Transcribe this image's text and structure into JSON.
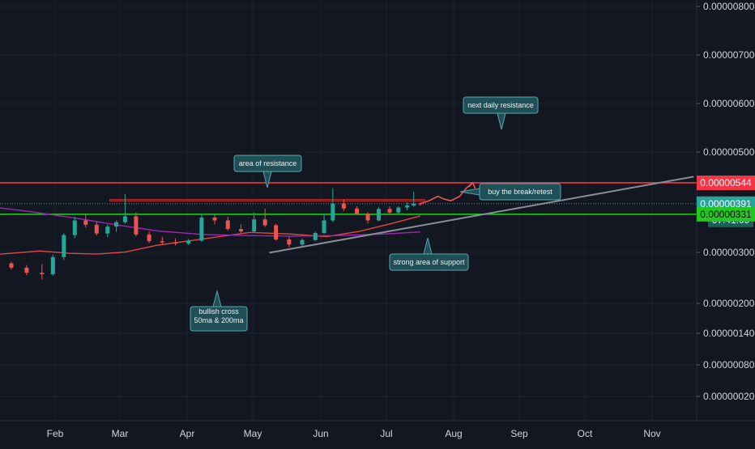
{
  "colors": {
    "background": "#131722",
    "grid": "#1e2230",
    "axis_text": "#d1d4dc",
    "up": "#26a69a",
    "down": "#ef5350",
    "ma50": "#e0483e",
    "ma200": "#9c27b0",
    "resistance_line": "#f23645",
    "support_line": "#22c71f",
    "trendline": "#8a8d96",
    "zone_fill": "#1e3b2c",
    "zone_border": "#b52b2b",
    "callout_bg": "#1f4f57",
    "callout_border": "#57a7ad",
    "projection": "#ef5350"
  },
  "chart_data": {
    "type": "candlestick",
    "title": "",
    "xlabel": "",
    "ylabel": "",
    "scale": "log",
    "ylim": [
      1e-07,
      8.5e-07
    ],
    "x_axis_labels": [
      "Feb",
      "Mar",
      "Apr",
      "May",
      "Jun",
      "Jul",
      "Aug",
      "Sep",
      "Oct",
      "Nov"
    ],
    "y_axis_labels": [
      "0.00000800",
      "0.00000700",
      "0.00000600",
      "0.00000500",
      "0.00000300",
      "0.00000200",
      "0.00000140",
      "0.00000080",
      "0.00000020"
    ],
    "price_tags": [
      {
        "label": "0.00000544",
        "kind": "resistance"
      },
      {
        "label": "0.00000391",
        "kind": "last_price"
      },
      {
        "label": "07:41:09",
        "kind": "countdown"
      },
      {
        "label": "0.00000331",
        "kind": "support"
      }
    ],
    "horizontal_levels": [
      {
        "price": 5.44e-06,
        "kind": "resistance"
      },
      {
        "price": 3.31e-06,
        "kind": "support"
      },
      {
        "price": 3.91e-06,
        "kind": "last_price"
      }
    ],
    "resistance_zone": {
      "low": 4.08e-06,
      "high": 4.18e-06,
      "from": "2021-02-26",
      "to": "2021-07-20"
    },
    "candles": [
      [
        "2021-01-05",
        1.65e-06,
        1.7e-06,
        1.48e-06,
        1.52e-06
      ],
      [
        "2021-01-12",
        1.52e-06,
        1.56e-06,
        1.38e-06,
        1.42e-06
      ],
      [
        "2021-01-19",
        1.42e-06,
        1.48e-06,
        1.26e-06,
        1.31e-06
      ],
      [
        "2021-01-26",
        1.31e-06,
        1.5e-06,
        1.18e-06,
        1.28e-06
      ],
      [
        "2021-01-31",
        1.28e-06,
        1.75e-06,
        1.25e-06,
        1.68e-06
      ],
      [
        "2021-02-05",
        1.68e-06,
        2.45e-06,
        1.6e-06,
        2.38e-06
      ],
      [
        "2021-02-10",
        2.38e-06,
        3.18e-06,
        2.26e-06,
        3e-06
      ],
      [
        "2021-02-15",
        3e-06,
        3.3e-06,
        2.68e-06,
        2.8e-06
      ],
      [
        "2021-02-20",
        2.8e-06,
        2.95e-06,
        2.36e-06,
        2.44e-06
      ],
      [
        "2021-02-25",
        2.44e-06,
        2.82e-06,
        2.3e-06,
        2.72e-06
      ],
      [
        "2021-03-01",
        2.72e-06,
        3e-06,
        2.5e-06,
        2.92e-06
      ],
      [
        "2021-03-05",
        2.92e-06,
        4.55e-06,
        2.85e-06,
        3.2e-06
      ],
      [
        "2021-03-10",
        3.2e-06,
        3.4e-06,
        2.32e-06,
        2.4e-06
      ],
      [
        "2021-03-16",
        2.4e-06,
        2.52e-06,
        2.1e-06,
        2.16e-06
      ],
      [
        "2021-03-22",
        2.16e-06,
        2.32e-06,
        2.04e-06,
        2.12e-06
      ],
      [
        "2021-03-28",
        2.12e-06,
        2.26e-06,
        2.02e-06,
        2.08e-06
      ],
      [
        "2021-04-03",
        2.08e-06,
        2.24e-06,
        2.03e-06,
        2.18e-06
      ],
      [
        "2021-04-09",
        2.18e-06,
        3.35e-06,
        2.14e-06,
        3.14e-06
      ],
      [
        "2021-04-15",
        3.14e-06,
        3.3e-06,
        2.82e-06,
        3e-06
      ],
      [
        "2021-04-21",
        3e-06,
        3.18e-06,
        2.55e-06,
        2.62e-06
      ],
      [
        "2021-04-27",
        2.62e-06,
        2.82e-06,
        2.46e-06,
        2.52e-06
      ],
      [
        "2021-05-03",
        2.52e-06,
        3.4e-06,
        2.47e-06,
        3.05e-06
      ],
      [
        "2021-05-08",
        3.05e-06,
        3.62e-06,
        2.7e-06,
        2.78e-06
      ],
      [
        "2021-05-13",
        2.78e-06,
        2.85e-06,
        2.18e-06,
        2.22e-06
      ],
      [
        "2021-05-19",
        2.22e-06,
        2.32e-06,
        1.96e-06,
        2.05e-06
      ],
      [
        "2021-05-25",
        2.05e-06,
        2.26e-06,
        1.98e-06,
        2.2e-06
      ],
      [
        "2021-05-31",
        2.2e-06,
        2.52e-06,
        2.15e-06,
        2.46e-06
      ],
      [
        "2021-06-04",
        2.46e-06,
        3.35e-06,
        2.42e-06,
        3e-06
      ],
      [
        "2021-06-08",
        3e-06,
        5e-06,
        2.92e-06,
        3.92e-06
      ],
      [
        "2021-06-13",
        3.92e-06,
        4.18e-06,
        3.48e-06,
        3.62e-06
      ],
      [
        "2021-06-19",
        3.62e-06,
        3.75e-06,
        3.26e-06,
        3.34e-06
      ],
      [
        "2021-06-24",
        3.34e-06,
        3.42e-06,
        2.86e-06,
        3e-06
      ],
      [
        "2021-06-29",
        3e-06,
        3.72e-06,
        2.96e-06,
        3.6e-06
      ],
      [
        "2021-07-04",
        3.6e-06,
        3.74e-06,
        3.3e-06,
        3.4e-06
      ],
      [
        "2021-07-08",
        3.4e-06,
        3.75e-06,
        3.28e-06,
        3.68e-06
      ],
      [
        "2021-07-12",
        3.68e-06,
        4e-06,
        3.52e-06,
        3.8e-06
      ],
      [
        "2021-07-15",
        3.8e-06,
        4.72e-06,
        3.72e-06,
        3.92e-06
      ],
      [
        "2021-07-18",
        3.92e-06,
        3.98e-06,
        3.78e-06,
        3.91e-06
      ]
    ],
    "series": [
      {
        "name": "50ma",
        "points": [
          [
            "2021-01-05",
            1.75e-06
          ],
          [
            "2021-01-25",
            1.85e-06
          ],
          [
            "2021-02-08",
            1.78e-06
          ],
          [
            "2021-02-20",
            1.76e-06
          ],
          [
            "2021-03-05",
            1.82e-06
          ],
          [
            "2021-03-20",
            2.03e-06
          ],
          [
            "2021-04-10",
            2.24e-06
          ],
          [
            "2021-05-01",
            2.48e-06
          ],
          [
            "2021-05-20",
            2.42e-06
          ],
          [
            "2021-06-05",
            2.32e-06
          ],
          [
            "2021-06-20",
            2.52e-06
          ],
          [
            "2021-07-05",
            2.86e-06
          ],
          [
            "2021-07-18",
            3.22e-06
          ]
        ]
      },
      {
        "name": "200ma",
        "points": [
          [
            "2021-01-01",
            3.74e-06
          ],
          [
            "2021-01-20",
            3.46e-06
          ],
          [
            "2021-02-10",
            3.12e-06
          ],
          [
            "2021-03-01",
            2.8e-06
          ],
          [
            "2021-03-20",
            2.54e-06
          ],
          [
            "2021-04-10",
            2.4e-06
          ],
          [
            "2021-05-01",
            2.36e-06
          ],
          [
            "2021-05-20",
            2.34e-06
          ],
          [
            "2021-06-10",
            2.36e-06
          ],
          [
            "2021-07-01",
            2.42e-06
          ],
          [
            "2021-07-18",
            2.5e-06
          ]
        ]
      }
    ],
    "trendline": {
      "points": [
        [
          "2021-05-10",
          1.8e-06
        ],
        [
          "2021-11-20",
          6e-06
        ]
      ]
    },
    "projection": {
      "points": [
        [
          "2021-07-18",
          3.91e-06
        ],
        [
          "2021-07-22",
          4.1e-06
        ],
        [
          "2021-07-26",
          4.4e-06
        ],
        [
          "2021-07-29",
          4.2e-06
        ],
        [
          "2021-08-01",
          4.1e-06
        ],
        [
          "2021-08-05",
          4.4e-06
        ],
        [
          "2021-08-08",
          5e-06
        ],
        [
          "2021-08-11",
          5.44e-06
        ]
      ]
    },
    "annotations": [
      {
        "text": "next daily resistance"
      },
      {
        "text": "area of resistance"
      },
      {
        "text": "buy the break/retest"
      },
      {
        "text": "strong area of support"
      },
      {
        "text": "bullish cross\n50ma & 200ma"
      }
    ]
  }
}
